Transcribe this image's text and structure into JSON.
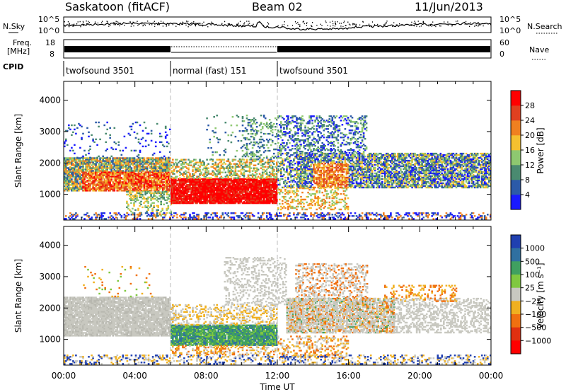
{
  "header": {
    "station": "Saskatoon (fitACF)",
    "beam": "Beam 02",
    "date": "11/Jun/2013"
  },
  "side_labels": {
    "nsky": "N.Sky",
    "nsky_ticks": [
      "10^5",
      "10^0"
    ],
    "nsearch": "N.Search",
    "nsearch_ticks": [
      "10^5",
      "10^0"
    ],
    "freq_line1": "Freq.",
    "freq_line2": "[MHz]",
    "freq_ticks": [
      "18",
      "8"
    ],
    "nave": "Nave",
    "nave_ticks": [
      "60",
      "0"
    ],
    "cpid": "CPID"
  },
  "cpid_segments": [
    {
      "label": "twofsound 3501",
      "start": 0,
      "end": 6
    },
    {
      "label": "normal (fast) 151",
      "start": 6,
      "end": 12
    },
    {
      "label": "twofsound 3501",
      "start": 12,
      "end": 24
    }
  ],
  "chart_data": [
    {
      "type": "heatmap",
      "name": "power",
      "ylabel": "Slant Range [km]",
      "ylim": [
        180,
        4600
      ],
      "yticks": [
        "1000",
        "2000",
        "3000",
        "4000"
      ],
      "colorbar_label": "Power [dB]",
      "colorbar_ticks": [
        "4",
        "8",
        "12",
        "16",
        "20",
        "24",
        "28"
      ],
      "colors": [
        "#1a1aff",
        "#2c5aa8",
        "#4a8a70",
        "#8ec870",
        "#f5c030",
        "#f08020",
        "#e04020",
        "#ff0000"
      ],
      "echo_regions": [
        {
          "t": [
            0,
            6
          ],
          "range_km": [
            1100,
            2100
          ],
          "level": "medium-high"
        },
        {
          "t": [
            6,
            12
          ],
          "range_km": [
            800,
            1500
          ],
          "level": "high"
        },
        {
          "t": [
            12,
            24
          ],
          "range_km": [
            1200,
            2200
          ],
          "level": "low-medium"
        },
        {
          "t": [
            12,
            16
          ],
          "range_km": [
            2500,
            3500
          ],
          "level": "low"
        }
      ]
    },
    {
      "type": "heatmap",
      "name": "velocity",
      "xlabel": "Time UT",
      "xticks": [
        "00:00",
        "04:00",
        "08:00",
        "12:00",
        "16:00",
        "20:00",
        "00:00"
      ],
      "xlim": [
        0,
        24
      ],
      "ylabel": "Slant Range [km]",
      "ylim": [
        180,
        4600
      ],
      "yticks": [
        "1000",
        "2000",
        "3000",
        "4000"
      ],
      "colorbar_label": "Velocity [m s⁻¹]",
      "colorbar_ticks": [
        "1000",
        "500",
        "100",
        "25",
        "−25",
        "−100",
        "−500",
        "−1000"
      ],
      "colors": [
        "#2040b0",
        "#3070a0",
        "#40a060",
        "#80c840",
        "#c8c8c0",
        "#f0b020",
        "#f07010",
        "#e03010",
        "#ff0000"
      ],
      "echo_regions": [
        {
          "t": [
            0,
            6
          ],
          "range_km": [
            1100,
            2300
          ],
          "velocity_class": "near zero (ground scatter)"
        },
        {
          "t": [
            6,
            12
          ],
          "range_km": [
            800,
            1400
          ],
          "velocity_class": "positive 100-500"
        },
        {
          "t": [
            13,
            18
          ],
          "range_km": [
            1200,
            2300
          ],
          "velocity_class": "negative 100-500"
        }
      ]
    }
  ]
}
